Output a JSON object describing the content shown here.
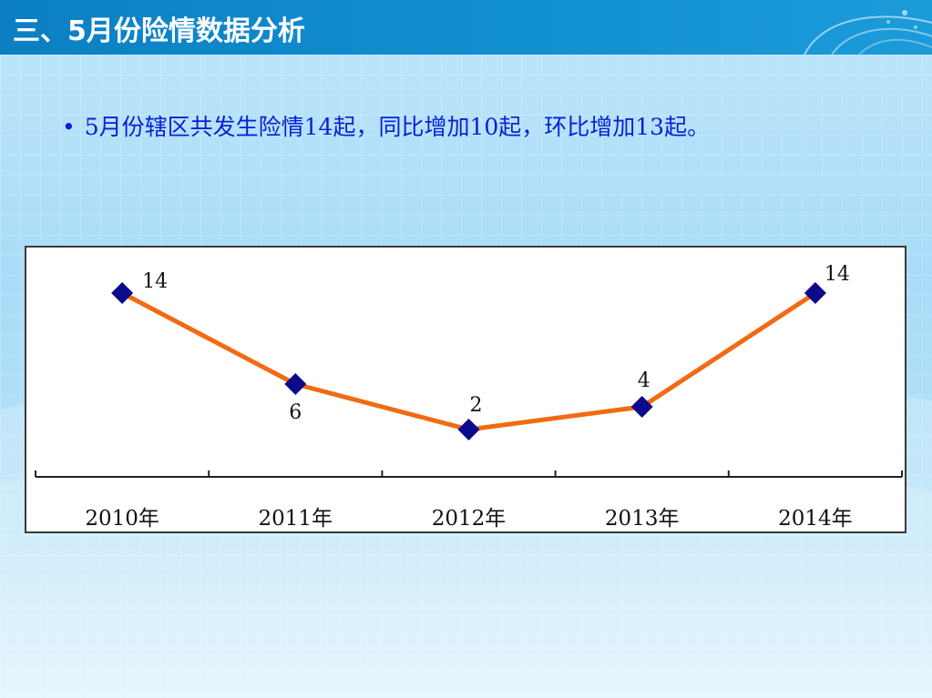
{
  "header": {
    "title": "三、5月份险情数据分析"
  },
  "bullet": {
    "marker": "•",
    "text": "5月份辖区共发生险情14起，同比增加10起，环比增加13起。"
  },
  "colors": {
    "header_bg": "#1190d2",
    "bullet_text": "#0a1fd6",
    "line": "#f26a12",
    "marker": "#0a0a8a"
  },
  "chart_data": {
    "type": "line",
    "categories": [
      "2010年",
      "2011年",
      "2012年",
      "2013年",
      "2014年"
    ],
    "series": [
      {
        "values": [
          14,
          6,
          2,
          4,
          14
        ]
      }
    ],
    "data_labels": [
      "14",
      "6",
      "2",
      "4",
      "14"
    ],
    "ylim": [
      0,
      16
    ],
    "grid": false,
    "legend": "none",
    "marker": "diamond"
  }
}
